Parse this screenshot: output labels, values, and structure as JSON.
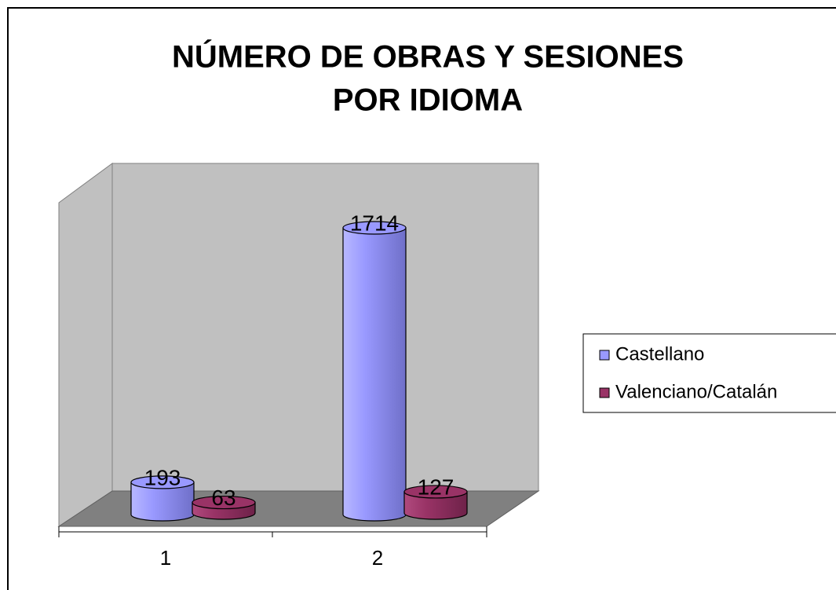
{
  "chart_data": {
    "type": "bar3d",
    "title": [
      "NÚMERO DE OBRAS Y SESIONES",
      "POR IDIOMA"
    ],
    "categories": [
      "1",
      "2"
    ],
    "series": [
      {
        "name": "Castellano",
        "color": "#9999ff",
        "values": [
          193,
          1714
        ]
      },
      {
        "name": "Valenciano/Catalán",
        "color": "#993366",
        "values": [
          63,
          127
        ]
      }
    ],
    "legend": "right"
  }
}
